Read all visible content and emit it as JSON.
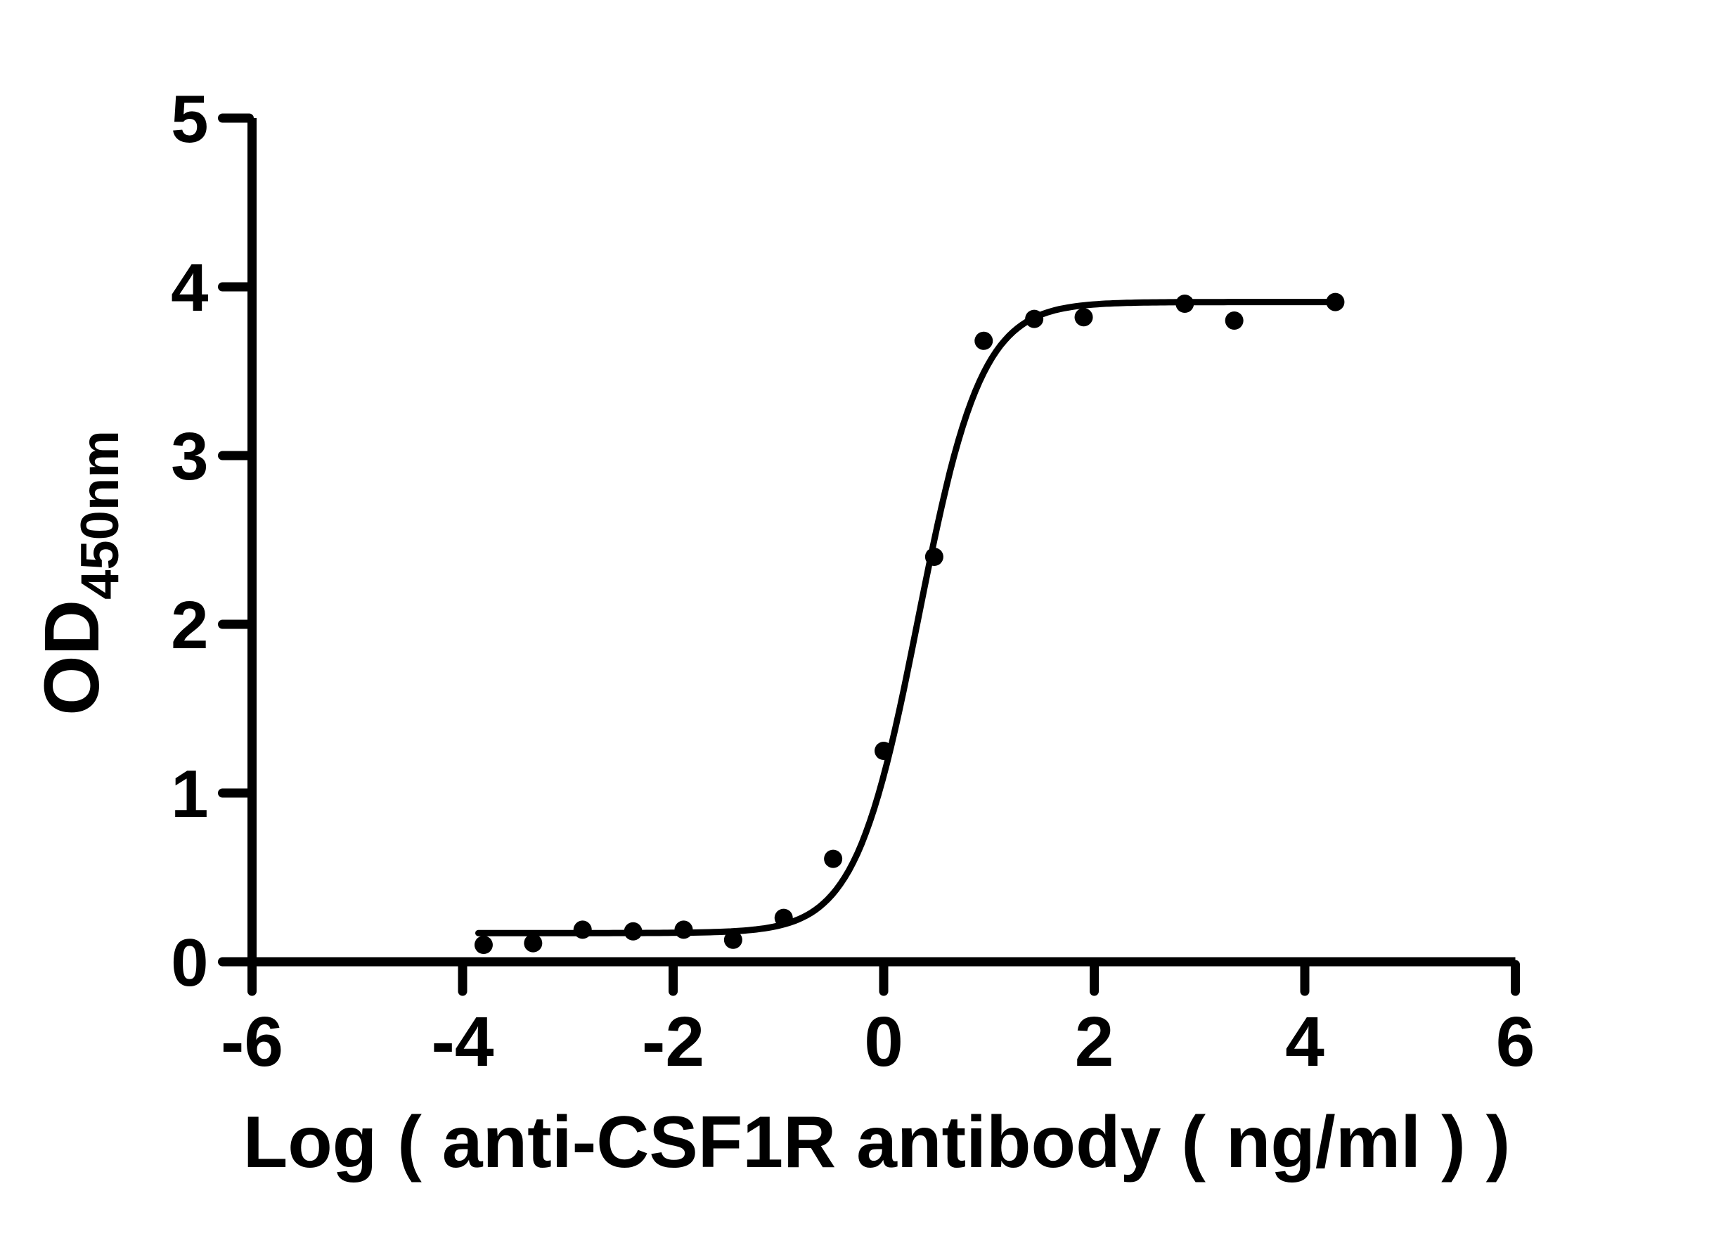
{
  "figure": {
    "background_color": "#ffffff",
    "ink_color": "#000000",
    "description": "ELISA sigmoidal binding curve of anti-CSF1R antibody, OD450nm vs log concentration"
  },
  "chart_data": {
    "type": "scatter",
    "title": "",
    "xlabel": "Log ( anti-CSF1R antibody ( ng/ml )   )",
    "ylabel_main": "OD",
    "ylabel_sub": "450nm",
    "xlim": [
      -6,
      6
    ],
    "ylim": [
      0,
      5
    ],
    "x_ticks": [
      -6,
      -4,
      -2,
      0,
      2,
      4,
      6
    ],
    "y_ticks": [
      0,
      1,
      2,
      3,
      4,
      5
    ],
    "grid": false,
    "legend_position": "none",
    "marker_color": "#000000",
    "curve_color": "#000000",
    "series": [
      {
        "name": "anti-CSF1R antibody",
        "marker": "filled-circle",
        "points": [
          [
            -3.8,
            0.1
          ],
          [
            -3.33,
            0.11
          ],
          [
            -2.86,
            0.19
          ],
          [
            -2.38,
            0.18
          ],
          [
            -1.9,
            0.19
          ],
          [
            -1.43,
            0.13
          ],
          [
            -0.95,
            0.26
          ],
          [
            -0.48,
            0.61
          ],
          [
            0.0,
            1.25
          ],
          [
            0.48,
            2.4
          ],
          [
            0.95,
            3.68
          ],
          [
            1.43,
            3.81
          ],
          [
            1.9,
            3.82
          ],
          [
            2.86,
            3.9
          ],
          [
            3.33,
            3.8
          ],
          [
            4.29,
            3.91
          ]
        ]
      }
    ],
    "fit_curve": {
      "model": "4PL sigmoid",
      "bottom": 0.17,
      "top": 3.91,
      "log_ec50": 0.33,
      "hill_slope": 1.45,
      "x_start": -3.85,
      "x_end": 4.31
    }
  }
}
